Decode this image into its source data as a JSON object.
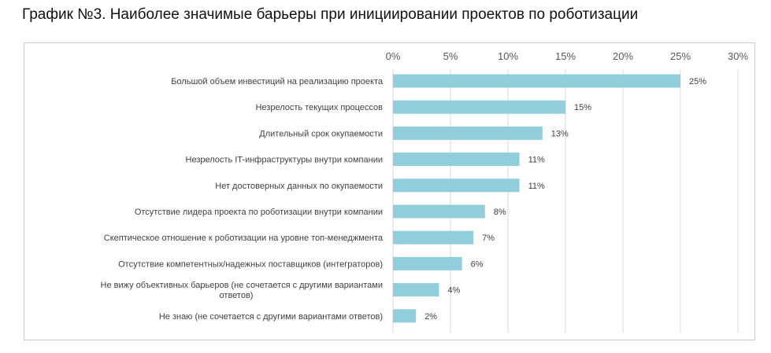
{
  "title": "График №3. Наиболее значимые барьеры при инициировании проектов по роботизации",
  "colors": {
    "bar": "#92CDDC",
    "grid": "#d9d9d9",
    "frame": "#c9c9c9"
  },
  "chart_data": {
    "type": "bar",
    "orientation": "horizontal",
    "categories": [
      "Большой объем инвестиций на реализацию проекта",
      "Незрелость текущих процессов",
      "Длительный срок окупаемости",
      "Незрелость IT-инфраструктуры внутри компании",
      "Нет достоверных данных по окупаемости",
      "Отсутствие лидера проекта по роботизации внутри компании",
      "Скептическое отношение к роботизации на уровне топ-менеджмента",
      "Отсутствие компетентных/надежных поставщиков (интеграторов)",
      "Не вижу объективных барьеров (не сочетается с другими вариантами ответов)",
      "Не знаю (не сочетается с другими вариантами ответов)"
    ],
    "category_lines": [
      [
        "Большой объем инвестиций на реализацию проекта"
      ],
      [
        "Незрелость текущих процессов"
      ],
      [
        "Длительный срок окупаемости"
      ],
      [
        "Незрелость IT-инфраструктуры внутри компании"
      ],
      [
        "Нет достоверных данных по окупаемости"
      ],
      [
        "Отсутствие лидера проекта по роботизации внутри компании"
      ],
      [
        "Скептическое отношение к роботизации на уровне топ-менеджмента"
      ],
      [
        "Отсутствие компетентных/надежных поставщиков (интеграторов)"
      ],
      [
        "Не вижу объективных барьеров (не сочетается с другими вариантами",
        "ответов)"
      ],
      [
        "Не знаю (не сочетается с другими вариантами ответов)"
      ]
    ],
    "values": [
      25,
      15,
      13,
      11,
      11,
      8,
      7,
      6,
      4,
      2
    ],
    "data_labels": [
      "25%",
      "15%",
      "13%",
      "11%",
      "11%",
      "8%",
      "7%",
      "6%",
      "4%",
      "2%"
    ],
    "xlim": [
      0,
      30
    ],
    "x_ticks": [
      0,
      5,
      10,
      15,
      20,
      25,
      30
    ],
    "x_tick_labels": [
      "0%",
      "5%",
      "10%",
      "15%",
      "20%",
      "25%",
      "30%"
    ],
    "axis_position": "top",
    "grid": true,
    "legend": false
  }
}
